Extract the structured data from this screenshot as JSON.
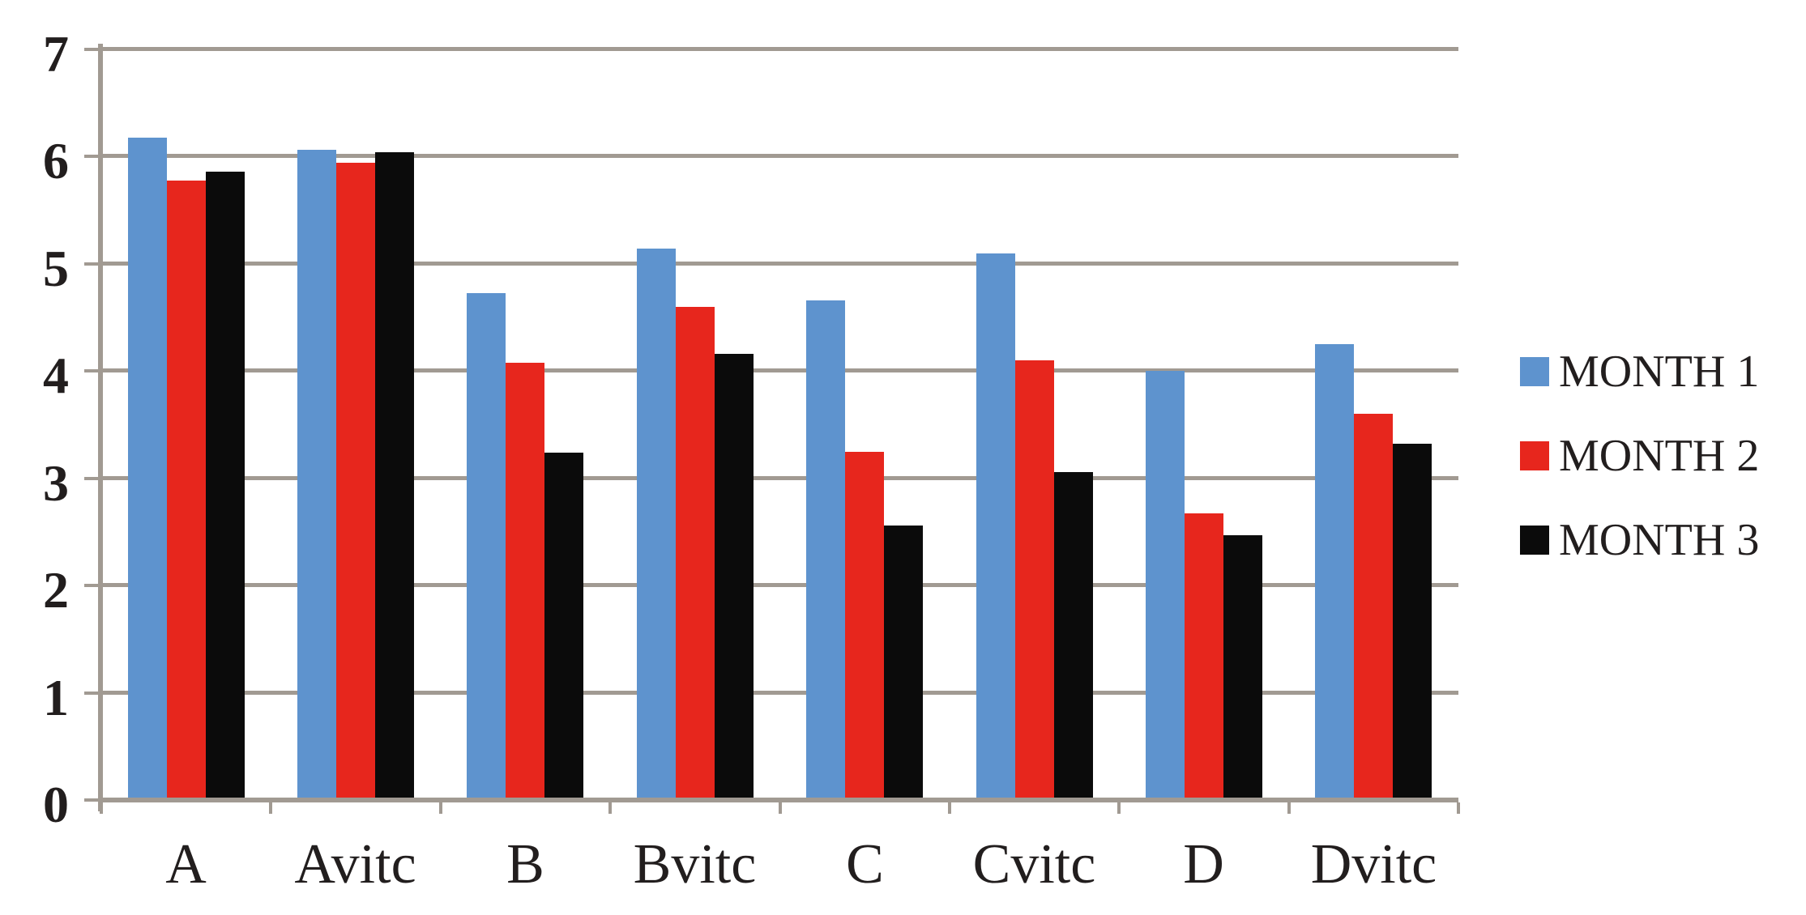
{
  "figure": {
    "background": "#FFFFFF"
  },
  "colors": {
    "grid": "#A19A92",
    "axis": "#A19A92",
    "text": "#221E1E",
    "month1_blue": "#5E93CE",
    "month2_red": "#E7261D",
    "month3_black": "#0B0B0B"
  },
  "y_axis": {
    "tick_labels": [
      "0",
      "1",
      "2",
      "3",
      "4",
      "5",
      "6",
      "7"
    ]
  },
  "x_axis": {
    "categories": [
      "A",
      "Avitc",
      "B",
      "Bvitc",
      "C",
      "Cvitc",
      "D",
      "Dvitc"
    ]
  },
  "legend": {
    "items": [
      "MONTH 1",
      "MONTH 2",
      "MONTH 3"
    ]
  },
  "chart_data": {
    "type": "bar",
    "categories": [
      "A",
      "Avitc",
      "B",
      "Bvitc",
      "C",
      "Cvitc",
      "D",
      "Dvitc"
    ],
    "series": [
      {
        "name": "MONTH 1",
        "color": "#5E93CE",
        "values": [
          6.18,
          6.06,
          4.73,
          5.14,
          4.66,
          5.1,
          4.0,
          4.25
        ]
      },
      {
        "name": "MONTH 2",
        "color": "#E7261D",
        "values": [
          5.78,
          5.94,
          4.08,
          4.6,
          3.25,
          4.1,
          2.67,
          3.6
        ]
      },
      {
        "name": "MONTH 3",
        "color": "#0B0B0B",
        "values": [
          5.86,
          6.04,
          3.24,
          4.16,
          2.56,
          3.06,
          2.47,
          3.32
        ]
      }
    ],
    "title": "",
    "xlabel": "",
    "ylabel": "",
    "ylim": [
      0,
      7
    ],
    "ytick_step": 1,
    "grid": "horizontal-only",
    "legend_position": "right-middle"
  }
}
